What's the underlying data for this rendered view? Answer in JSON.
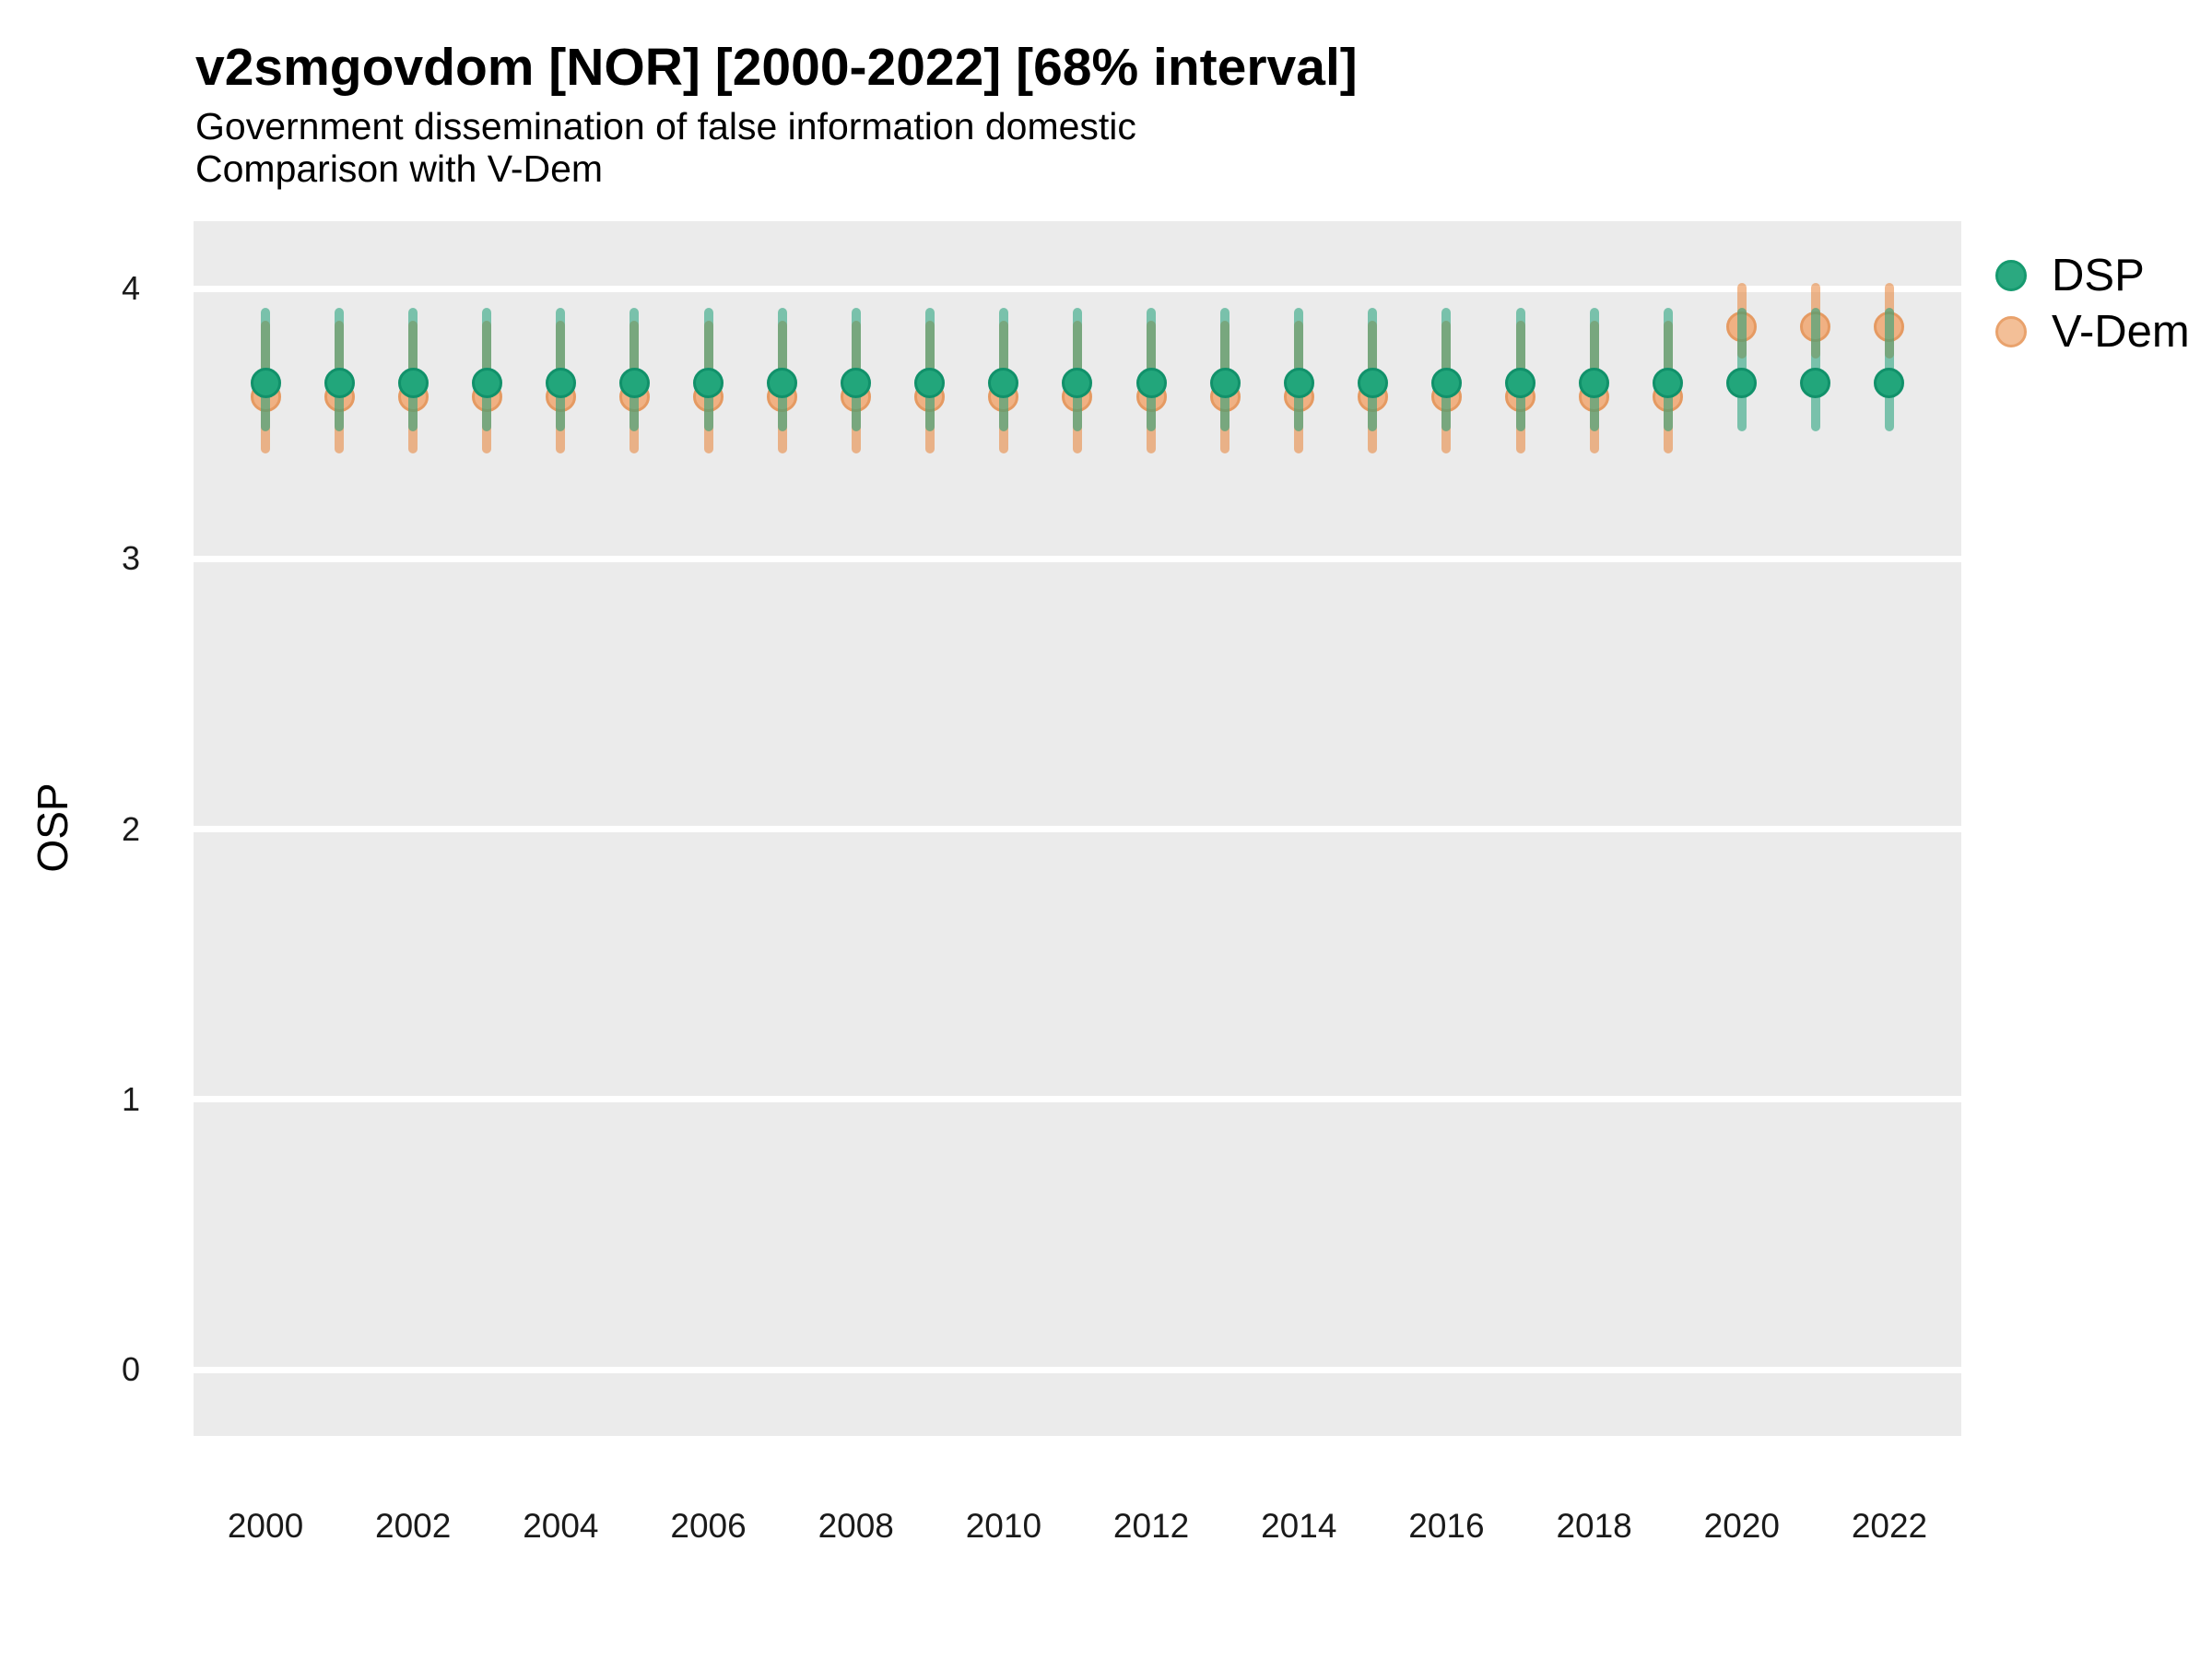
{
  "header": {
    "title": "v2smgovdom [NOR] [2000-2022] [68% interval]",
    "subtitle1": "Government dissemination of false information domestic",
    "subtitle2": "Comparison with V-Dem"
  },
  "chart_data": {
    "type": "pointrange",
    "title": "v2smgovdom [NOR] [2000-2022] [68% interval]",
    "subtitle1": "Government dissemination of false information domestic",
    "subtitle2": "Comparison with V-Dem",
    "ylabel": "OSP",
    "xlabel": "",
    "years": [
      2000,
      2001,
      2002,
      2003,
      2004,
      2005,
      2006,
      2007,
      2008,
      2009,
      2010,
      2011,
      2012,
      2013,
      2014,
      2015,
      2016,
      2017,
      2018,
      2019,
      2020,
      2021,
      2022
    ],
    "x_tick_labels": [
      "2000",
      "2002",
      "2004",
      "2006",
      "2008",
      "2010",
      "2012",
      "2014",
      "2016",
      "2018",
      "2020",
      "2022"
    ],
    "y_tick_labels": [
      "0",
      "1",
      "2",
      "3",
      "4"
    ],
    "y_ticks": [
      0,
      1,
      2,
      3,
      4
    ],
    "ylim": [
      0,
      4
    ],
    "interval": "68%",
    "grid": "horizontal-major-only",
    "legend_position": "right-top",
    "panel_bg": "#ebebeb",
    "gridline_color": "#ffffff",
    "series": [
      {
        "key": "vdem",
        "name": "V-Dem",
        "line_color": "rgba(231,129,53,0.55)",
        "point_fill": "#f0b183",
        "point_stroke": "#e59a62",
        "est": [
          3.6,
          3.6,
          3.6,
          3.6,
          3.6,
          3.6,
          3.6,
          3.6,
          3.6,
          3.6,
          3.6,
          3.6,
          3.6,
          3.6,
          3.6,
          3.6,
          3.6,
          3.6,
          3.6,
          3.6,
          3.86,
          3.86,
          3.86
        ],
        "lo": [
          3.39,
          3.39,
          3.39,
          3.39,
          3.39,
          3.39,
          3.39,
          3.39,
          3.39,
          3.39,
          3.39,
          3.39,
          3.39,
          3.39,
          3.39,
          3.39,
          3.39,
          3.39,
          3.39,
          3.39,
          3.74,
          3.74,
          3.74
        ],
        "hi": [
          3.88,
          3.88,
          3.88,
          3.88,
          3.88,
          3.88,
          3.88,
          3.88,
          3.88,
          3.88,
          3.88,
          3.88,
          3.88,
          3.88,
          3.88,
          3.88,
          3.88,
          3.88,
          3.88,
          3.88,
          4.02,
          4.02,
          4.02
        ]
      },
      {
        "key": "dsp",
        "name": "DSP",
        "line_color": "rgba(27,158,119,0.55)",
        "point_fill": "#22a67b",
        "point_stroke": "#11916a",
        "est": [
          3.65,
          3.65,
          3.65,
          3.65,
          3.65,
          3.65,
          3.65,
          3.65,
          3.65,
          3.65,
          3.65,
          3.65,
          3.65,
          3.65,
          3.65,
          3.65,
          3.65,
          3.65,
          3.65,
          3.65,
          3.65,
          3.65,
          3.65
        ],
        "lo": [
          3.47,
          3.47,
          3.47,
          3.47,
          3.47,
          3.47,
          3.47,
          3.47,
          3.47,
          3.47,
          3.47,
          3.47,
          3.47,
          3.47,
          3.47,
          3.47,
          3.47,
          3.47,
          3.47,
          3.47,
          3.47,
          3.47,
          3.47
        ],
        "hi": [
          3.93,
          3.93,
          3.93,
          3.93,
          3.93,
          3.93,
          3.93,
          3.93,
          3.93,
          3.93,
          3.93,
          3.93,
          3.93,
          3.93,
          3.93,
          3.93,
          3.93,
          3.93,
          3.93,
          3.93,
          3.93,
          3.93,
          3.93
        ]
      }
    ],
    "legend": [
      {
        "label": "DSP",
        "fill": "#2ba980",
        "stroke": "#169a6f"
      },
      {
        "label": "V-Dem",
        "fill": "#f3bf97",
        "stroke": "#e9a26c"
      }
    ]
  }
}
